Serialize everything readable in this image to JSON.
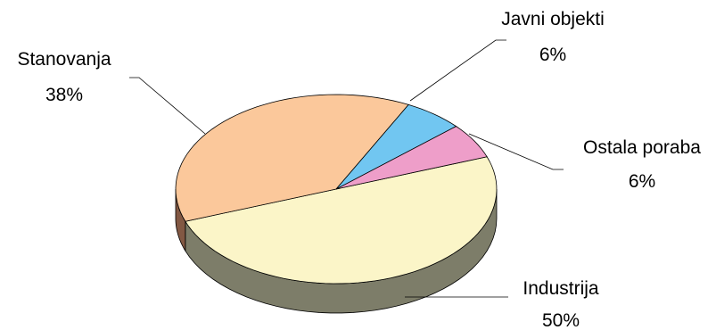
{
  "chart_data": {
    "type": "pie",
    "title": "",
    "slices": [
      {
        "label": "Industrija",
        "value_text": "50%",
        "value": 50,
        "color": "#fbf5c8",
        "side_color": "#7d7d69"
      },
      {
        "label": "Stanovanja",
        "value_text": "38%",
        "value": 38,
        "color": "#fbc89b",
        "side_color": "#825843"
      },
      {
        "label": "Javni objekti",
        "value_text": "6%",
        "value": 6,
        "color": "#71c6f1",
        "side_color": "#3a6f88"
      },
      {
        "label": "Ostala poraba",
        "value_text": "6%",
        "value": 6,
        "color": "#ee9ec9",
        "side_color": "#8a5a74"
      }
    ],
    "legend": "none",
    "labels_placement": "outside-with-leader-lines",
    "style": "3d-pie"
  }
}
